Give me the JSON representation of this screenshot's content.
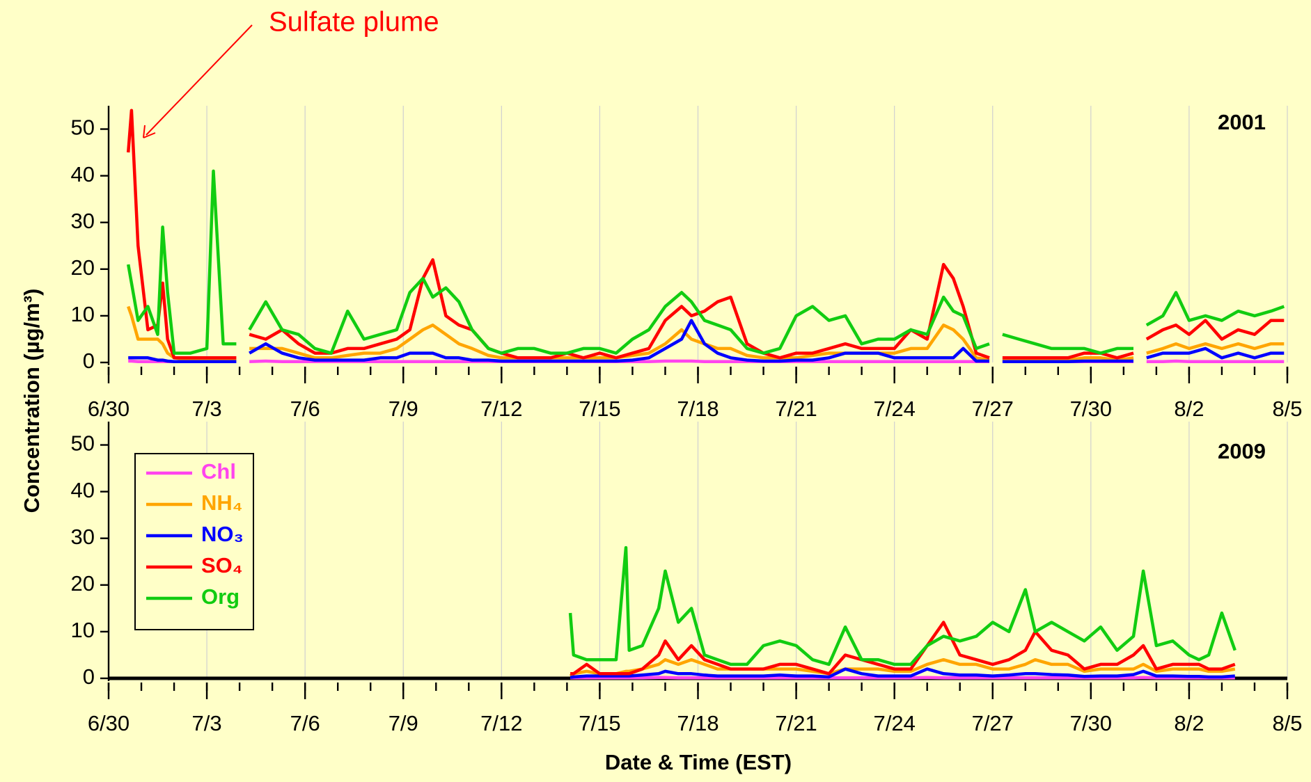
{
  "chart_data": [
    {
      "type": "line",
      "label": "2001",
      "annotation": "Sulfate plume",
      "ylabel": "Concentration (µg/m³)",
      "xlim": [
        0,
        36
      ],
      "xticks": [
        {
          "value": 0,
          "label": "6/30"
        },
        {
          "value": 3,
          "label": "7/3"
        },
        {
          "value": 6,
          "label": "7/6"
        },
        {
          "value": 9,
          "label": "7/9"
        },
        {
          "value": 12,
          "label": "7/12"
        },
        {
          "value": 15,
          "label": "7/15"
        },
        {
          "value": 18,
          "label": "7/18"
        },
        {
          "value": 21,
          "label": "7/21"
        },
        {
          "value": 24,
          "label": "7/24"
        },
        {
          "value": 27,
          "label": "7/27"
        },
        {
          "value": 30,
          "label": "7/30"
        },
        {
          "value": 33,
          "label": "8/2"
        },
        {
          "value": 36,
          "label": "8/5"
        }
      ],
      "ylim": [
        0,
        55
      ],
      "yticks": [
        0,
        10,
        20,
        30,
        40,
        50
      ],
      "grid": true,
      "x": [
        0.6,
        0.7,
        0.9,
        1.2,
        1.5,
        1.65,
        1.8,
        2.0,
        2.5,
        3.0,
        3.2,
        3.5,
        3.9,
        4.05,
        4.3,
        4.8,
        5.3,
        5.8,
        6.3,
        6.8,
        7.3,
        7.8,
        8.3,
        8.8,
        9.2,
        9.6,
        9.9,
        10.3,
        10.7,
        11.1,
        11.6,
        12.0,
        12.5,
        13,
        13.5,
        14,
        14.5,
        15,
        15.5,
        16,
        16.5,
        17,
        17.5,
        17.8,
        18.2,
        18.6,
        19.0,
        19.5,
        20,
        20.5,
        21,
        21.5,
        22,
        22.5,
        23,
        23.5,
        24,
        24.5,
        25,
        25.5,
        25.8,
        26.1,
        26.5,
        26.9,
        27.05,
        27.3,
        27.8,
        28.3,
        28.8,
        29.3,
        29.8,
        30.3,
        30.8,
        31.3,
        31.45,
        31.7,
        32.2,
        32.6,
        33,
        33.5,
        34,
        34.5,
        35,
        35.5,
        35.9
      ],
      "series": [
        {
          "color": "#ff44ee",
          "values": [
            0.3,
            0.3,
            0.2,
            0.2,
            0.2,
            0.2,
            0.2,
            0.2,
            0.2,
            0.2,
            0.2,
            0.2,
            0.2,
            null,
            0.2,
            0.3,
            0.2,
            0.2,
            0.2,
            0.2,
            0.2,
            0.2,
            0.2,
            0.2,
            0.2,
            0.2,
            0.2,
            0.2,
            0.2,
            0.2,
            0.2,
            0.2,
            0.2,
            0.2,
            0.2,
            0.2,
            0.2,
            0.2,
            0.2,
            0.2,
            0.2,
            0.3,
            0.3,
            0.3,
            0.2,
            0.2,
            0.2,
            0.2,
            0.2,
            0.2,
            0.2,
            0.2,
            0.2,
            0.2,
            0.2,
            0.2,
            0.2,
            0.2,
            0.2,
            0.2,
            0.2,
            0.2,
            0.2,
            0.2,
            null,
            0.2,
            0.2,
            0.2,
            0.2,
            0.2,
            0.2,
            0.2,
            0.2,
            0.2,
            null,
            0.2,
            0.2,
            0.3,
            0.2,
            0.2,
            0.2,
            0.2,
            0.2,
            0.2,
            0.2
          ]
        },
        {
          "color": "#ffa500",
          "values": [
            12,
            10,
            5,
            5,
            5,
            4,
            2,
            1,
            0.5,
            0.5,
            0.5,
            0.5,
            0.5,
            null,
            3,
            3,
            3,
            2,
            1,
            1,
            1.5,
            2,
            2,
            3,
            5,
            7,
            8,
            6,
            4,
            3,
            1.5,
            1,
            1,
            1,
            1,
            1,
            1,
            1,
            1,
            1.5,
            2,
            4,
            7,
            5,
            4,
            3,
            3,
            1.5,
            1,
            1,
            1,
            1.5,
            2,
            2,
            2,
            2,
            2,
            3,
            3,
            8,
            7,
            5,
            1,
            0.5,
            null,
            0.5,
            0.5,
            0.5,
            0.5,
            0.5,
            1,
            1,
            0.5,
            1,
            null,
            2,
            3,
            4,
            3,
            4,
            3,
            4,
            3,
            4,
            4
          ]
        },
        {
          "color": "#0000ff",
          "values": [
            1,
            1,
            1,
            1,
            0.5,
            0.5,
            0.3,
            0.2,
            0.2,
            0.2,
            0.2,
            0.2,
            0.2,
            null,
            2,
            4,
            2,
            1,
            0.5,
            0.5,
            0.5,
            0.5,
            1,
            1,
            2,
            2,
            2,
            1,
            1,
            0.5,
            0.5,
            0.3,
            0.3,
            0.3,
            0.3,
            0.3,
            0.3,
            0.3,
            0.3,
            0.5,
            1,
            3,
            5,
            9,
            4,
            2,
            1,
            0.5,
            0.3,
            0.3,
            0.5,
            0.5,
            1,
            2,
            2,
            2,
            1,
            1,
            1,
            1,
            1,
            3,
            0.3,
            0.3,
            null,
            0.2,
            0.2,
            0.2,
            0.2,
            0.2,
            0.3,
            0.3,
            0.3,
            0.3,
            null,
            1,
            2,
            2,
            2,
            3,
            1,
            2,
            1,
            2,
            2
          ]
        },
        {
          "color": "#ff0000",
          "values": [
            45,
            54,
            25,
            7,
            8,
            17,
            5,
            1,
            1,
            1,
            1,
            1,
            1,
            null,
            6,
            5,
            7,
            4,
            2,
            2,
            3,
            3,
            4,
            5,
            7,
            18,
            22,
            10,
            8,
            7,
            3,
            2,
            1,
            1,
            1,
            2,
            1,
            2,
            1,
            2,
            3,
            9,
            12,
            10,
            11,
            13,
            14,
            4,
            2,
            1,
            2,
            2,
            3,
            4,
            3,
            3,
            3,
            7,
            5,
            21,
            18,
            12,
            2,
            1,
            null,
            1,
            1,
            1,
            1,
            1,
            2,
            2,
            1,
            2,
            null,
            5,
            7,
            8,
            6,
            9,
            5,
            7,
            6,
            9,
            9
          ]
        },
        {
          "color": "#11cc11",
          "values": [
            21,
            17,
            9,
            12,
            6,
            29,
            15,
            2,
            2,
            3,
            41,
            4,
            4,
            null,
            7,
            13,
            7,
            6,
            3,
            2,
            11,
            5,
            6,
            7,
            15,
            18,
            14,
            16,
            13,
            7,
            3,
            2,
            3,
            3,
            2,
            2,
            3,
            3,
            2,
            5,
            7,
            12,
            15,
            13,
            9,
            8,
            7,
            3,
            2,
            3,
            10,
            12,
            9,
            10,
            4,
            5,
            5,
            7,
            6,
            14,
            11,
            10,
            3,
            4,
            null,
            6,
            5,
            4,
            3,
            3,
            3,
            2,
            3,
            3,
            null,
            8,
            10,
            15,
            9,
            10,
            9,
            11,
            10,
            11,
            12
          ]
        }
      ]
    },
    {
      "type": "line",
      "label": "2009",
      "xlabel": "Date & Time (EST)",
      "legend": "upper left",
      "zero_line": true,
      "xlim": [
        0,
        36
      ],
      "xticks": [
        {
          "value": 0,
          "label": "6/30"
        },
        {
          "value": 3,
          "label": "7/3"
        },
        {
          "value": 6,
          "label": "7/6"
        },
        {
          "value": 9,
          "label": "7/9"
        },
        {
          "value": 12,
          "label": "7/12"
        },
        {
          "value": 15,
          "label": "7/15"
        },
        {
          "value": 18,
          "label": "7/18"
        },
        {
          "value": 21,
          "label": "7/21"
        },
        {
          "value": 24,
          "label": "7/24"
        },
        {
          "value": 27,
          "label": "7/27"
        },
        {
          "value": 30,
          "label": "7/30"
        },
        {
          "value": 33,
          "label": "8/2"
        },
        {
          "value": 36,
          "label": "8/5"
        }
      ],
      "ylim": [
        0,
        55
      ],
      "yticks": [
        0,
        10,
        20,
        30,
        40,
        50
      ],
      "grid": true,
      "x": [
        14.1,
        14.2,
        14.6,
        15.0,
        15.5,
        15.8,
        15.9,
        16.3,
        16.8,
        17.0,
        17.4,
        17.8,
        18.2,
        18.6,
        19.0,
        19.5,
        20.0,
        20.5,
        21.0,
        21.5,
        22.0,
        22.5,
        23.0,
        23.5,
        24.0,
        24.5,
        25.0,
        25.5,
        26.0,
        26.5,
        27.0,
        27.5,
        28.0,
        28.3,
        28.8,
        29.3,
        29.8,
        30.3,
        30.8,
        31.3,
        31.6,
        32.0,
        32.5,
        33.0,
        33.3,
        33.6,
        34.0,
        34.4
      ],
      "series": [
        {
          "name": "Chl",
          "color": "#ff44ee",
          "values": [
            0.1,
            0.1,
            0.1,
            0.1,
            0.1,
            0.1,
            0.1,
            0.1,
            0.2,
            0.2,
            0.1,
            0.1,
            0.1,
            0.1,
            0.1,
            0.1,
            0.1,
            0.1,
            0.1,
            0.1,
            0.1,
            0.1,
            0.1,
            0.1,
            0.1,
            0.1,
            0.2,
            0.1,
            0.1,
            0.1,
            0.1,
            0.1,
            0.1,
            0.1,
            0.1,
            0.1,
            0.1,
            0.1,
            0.1,
            0.1,
            0.2,
            0.1,
            0.1,
            0.1,
            0.1,
            0.1,
            0.1,
            0.1
          ]
        },
        {
          "name": "NH₄",
          "color": "#ffa500",
          "values": [
            0.5,
            1,
            1.5,
            1,
            1,
            1.5,
            1.5,
            2,
            3,
            4,
            3,
            4,
            3,
            2,
            2,
            2,
            2,
            2,
            2,
            1.5,
            1,
            2,
            2,
            2,
            1.5,
            1.5,
            3,
            4,
            3,
            3,
            2,
            2,
            3,
            4,
            3,
            3,
            1.5,
            2,
            2,
            2,
            3,
            1.5,
            2,
            2,
            2,
            1.5,
            1.5,
            2
          ]
        },
        {
          "name": "NO₃",
          "color": "#0000ff",
          "values": [
            0.2,
            0.3,
            0.5,
            0.5,
            0.5,
            0.5,
            0.5,
            0.7,
            1,
            1.5,
            1,
            1,
            0.7,
            0.5,
            0.5,
            0.5,
            0.5,
            0.7,
            0.5,
            0.5,
            0.3,
            2,
            1,
            0.5,
            0.5,
            0.5,
            2,
            1,
            0.7,
            0.7,
            0.5,
            0.7,
            1,
            1,
            0.8,
            0.7,
            0.4,
            0.5,
            0.5,
            0.8,
            1.5,
            0.5,
            0.5,
            0.4,
            0.4,
            0.3,
            0.3,
            0.5
          ]
        },
        {
          "name": "SO₄",
          "color": "#ff0000",
          "values": [
            1,
            1,
            3,
            1,
            1,
            1,
            1,
            2,
            5,
            8,
            4,
            7,
            4,
            3,
            2,
            2,
            2,
            3,
            3,
            2,
            1,
            5,
            4,
            3,
            2,
            2,
            7,
            12,
            5,
            4,
            3,
            4,
            6,
            10,
            6,
            5,
            2,
            3,
            3,
            5,
            7,
            2,
            3,
            3,
            3,
            2,
            2,
            3
          ]
        },
        {
          "name": "Org",
          "color": "#11cc11",
          "values": [
            14,
            5,
            4,
            4,
            4,
            28,
            6,
            7,
            15,
            23,
            12,
            15,
            5,
            4,
            3,
            3,
            7,
            8,
            7,
            4,
            3,
            11,
            4,
            4,
            3,
            3,
            7,
            9,
            8,
            9,
            12,
            10,
            19,
            10,
            12,
            10,
            8,
            11,
            6,
            9,
            23,
            7,
            8,
            5,
            4,
            5,
            14,
            6
          ]
        }
      ]
    }
  ]
}
